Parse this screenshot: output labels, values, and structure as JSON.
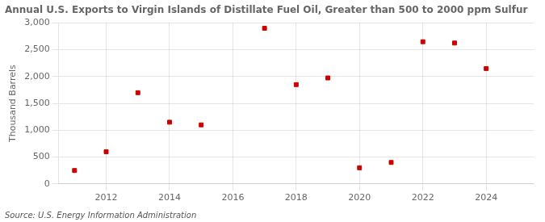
{
  "chart_data": {
    "type": "scatter",
    "title": "Annual U.S. Exports to Virgin Islands of Distillate Fuel Oil, Greater than 500 to 2000 ppm Sulfur",
    "ylabel": "Thousand Barrels",
    "source": "Source: U.S. Energy Information Administration",
    "x": [
      2011,
      2012,
      2013,
      2014,
      2015,
      2017,
      2018,
      2019,
      2020,
      2021,
      2022,
      2023,
      2024
    ],
    "values": [
      250,
      600,
      1700,
      1150,
      1100,
      2900,
      1850,
      1975,
      300,
      400,
      2650,
      2625,
      2150
    ],
    "color": "#cc0000",
    "marker": "square",
    "xlim": [
      2010.5,
      2025.5
    ],
    "xticks": [
      2012,
      2014,
      2016,
      2018,
      2020,
      2022,
      2024
    ],
    "ylim": [
      0,
      3000
    ],
    "yticks": [
      0,
      500,
      {
        "value": 1000,
        "label": "1,000"
      },
      {
        "value": 1500,
        "label": "1,500"
      },
      {
        "value": 2000,
        "label": "2,000"
      },
      {
        "value": 2500,
        "label": "2,500"
      },
      {
        "value": 3000,
        "label": "3,000"
      }
    ],
    "grid": true
  }
}
